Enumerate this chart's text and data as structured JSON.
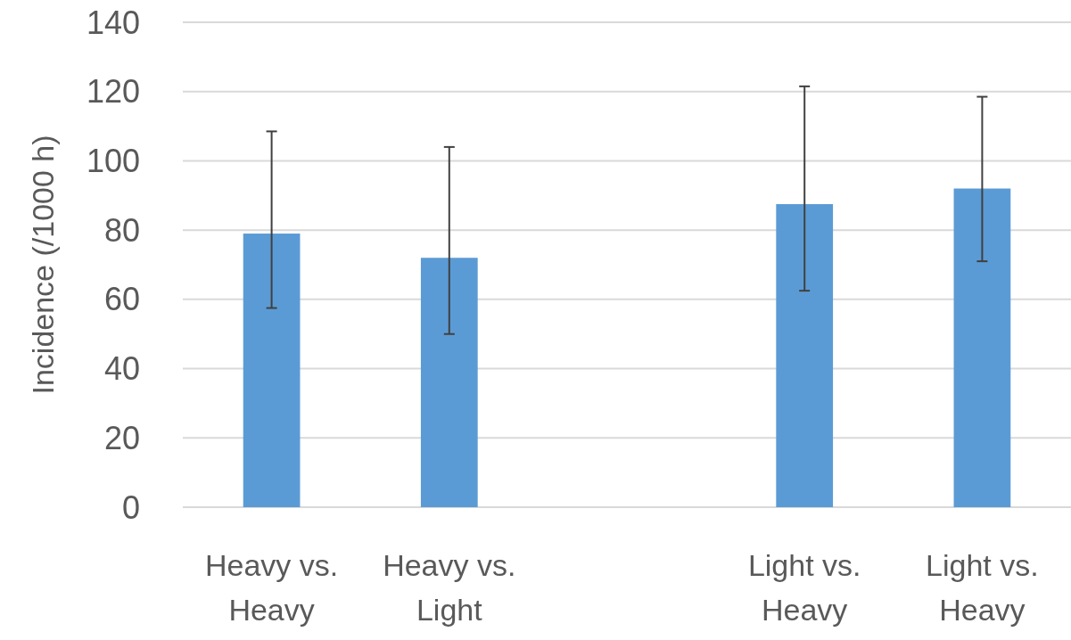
{
  "chart_data": {
    "type": "bar",
    "ylabel": "Incidence (/1000 h)",
    "categories": [
      "Heavy vs. Heavy",
      "Heavy vs. Light",
      null,
      "Light vs. Heavy",
      "Light vs. Heavy"
    ],
    "values": [
      79,
      72,
      null,
      87.5,
      92
    ],
    "errors": [
      [
        57.5,
        108.5
      ],
      [
        50,
        104
      ],
      null,
      [
        62.5,
        121.5
      ],
      [
        71,
        118.5
      ]
    ],
    "color": "#5b9bd5",
    "ylim": [
      0,
      140
    ],
    "yticks": [
      0,
      20,
      40,
      60,
      80,
      100,
      120,
      140
    ],
    "grid": "y"
  }
}
